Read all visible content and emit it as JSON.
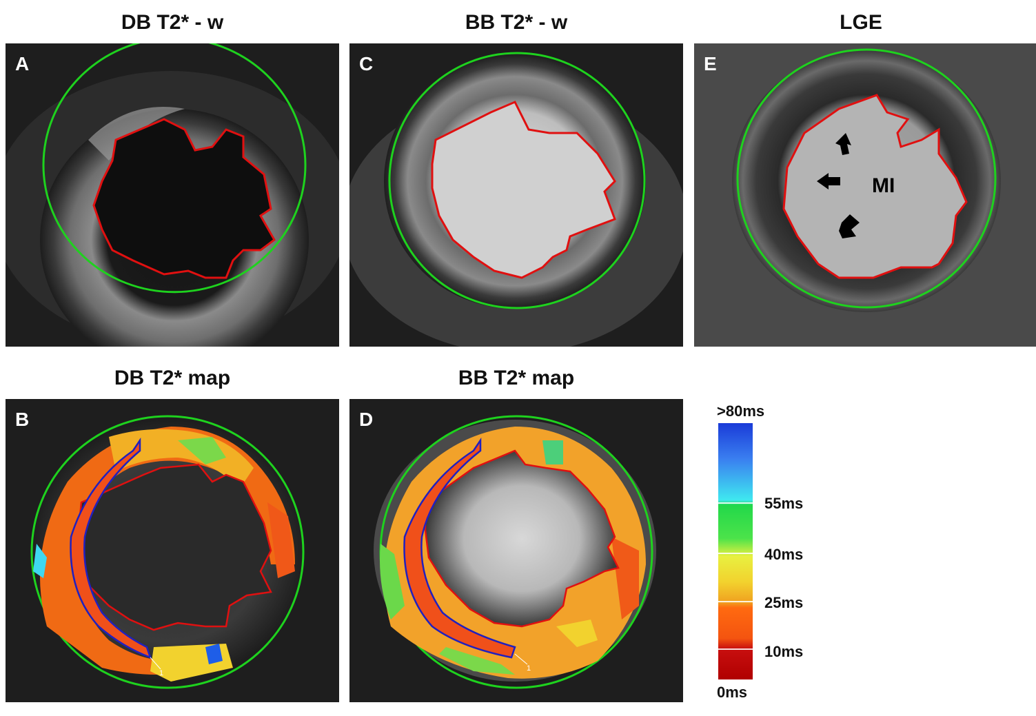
{
  "panels": {
    "a": {
      "title": "DB T2* - w",
      "label": "A"
    },
    "c": {
      "title": "BB T2* - w",
      "label": "C"
    },
    "e": {
      "title": "LGE",
      "label": "E",
      "annotation": "MI"
    },
    "b": {
      "title": "DB T2* map",
      "label": "B",
      "marker": "1"
    },
    "d": {
      "title": "BB T2* map",
      "label": "D",
      "marker": "1"
    }
  },
  "colorbar": {
    "ticks": [
      ">80ms",
      "55ms",
      "40ms",
      "25ms",
      "10ms",
      "0ms"
    ]
  },
  "colors": {
    "epicardium_contour": "#1ed21e",
    "endocardium_contour": "#e01010",
    "septal_roi": "#2020c0"
  }
}
